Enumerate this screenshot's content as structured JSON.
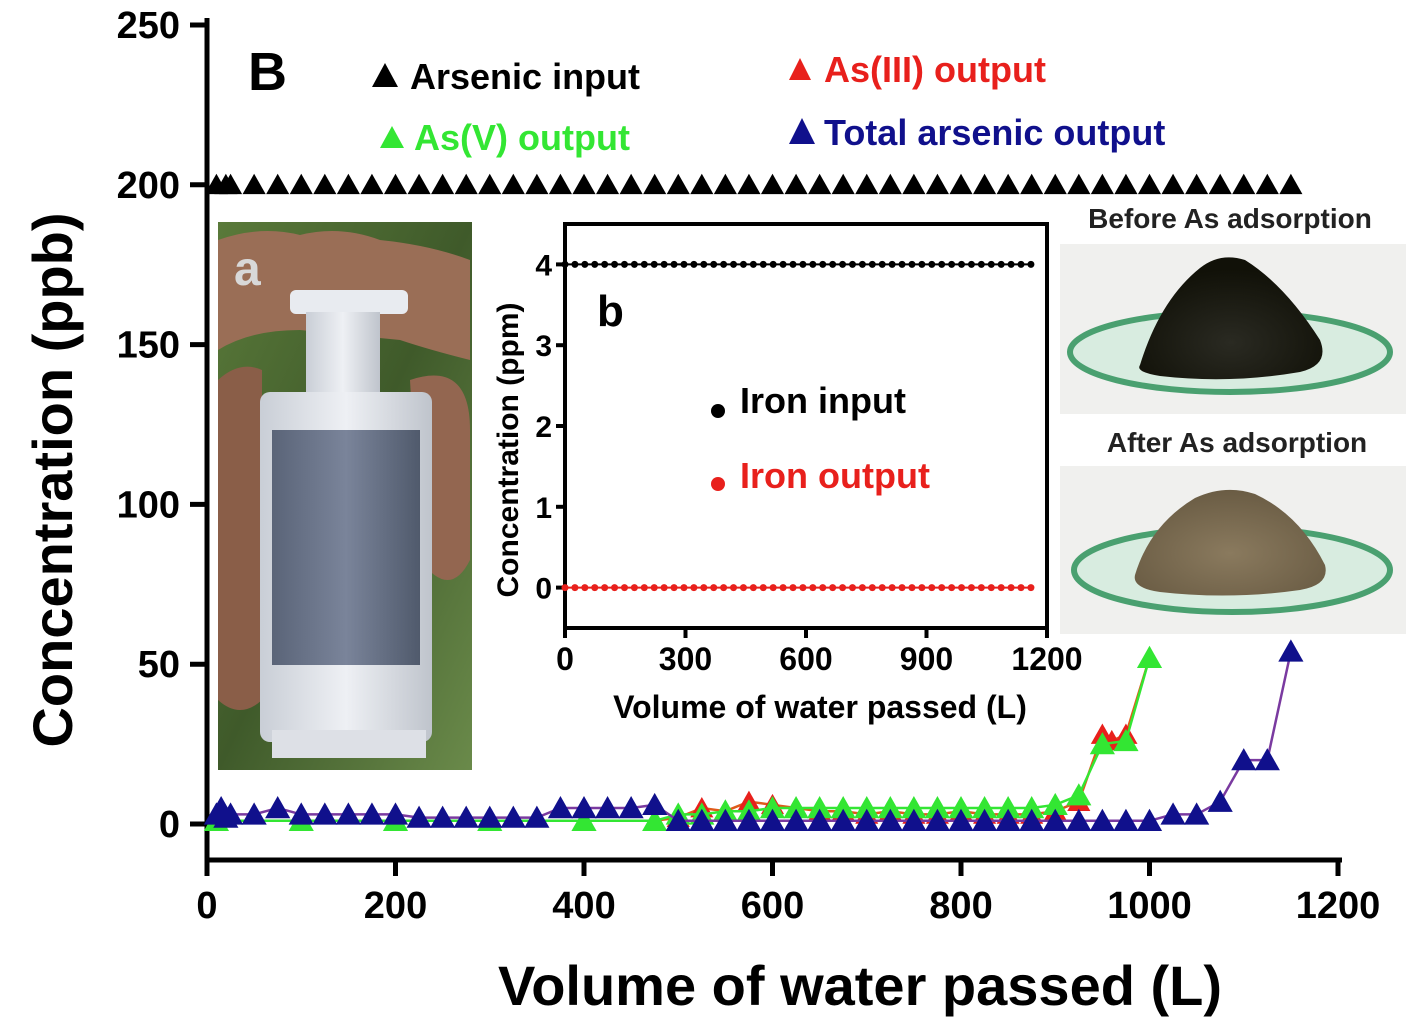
{
  "panel_label": "B",
  "inset_photo_label": "a",
  "inset_chart_label": "b",
  "photo_captions": {
    "before": "Before As adsorption",
    "after": "After As adsorption"
  },
  "colors": {
    "arsenic_input": "#000000",
    "as3_output": "#e8201c",
    "as5_output": "#33e633",
    "total_output": "#10108c",
    "as3_line": "#e05a1a",
    "total_line": "#7a3aa0",
    "iron_input": "#000000",
    "iron_output": "#e8201c"
  },
  "chart_data": [
    {
      "type": "scatter",
      "xlabel": "Volume of water passed (L)",
      "ylabel": "Concentration (ppb)",
      "xlim": [
        0,
        1200
      ],
      "ylim": [
        0,
        250
      ],
      "xticks": [
        0,
        200,
        400,
        600,
        800,
        1000,
        1200
      ],
      "yticks": [
        0,
        50,
        100,
        150,
        200,
        250
      ],
      "grid": false,
      "legend_placement": "top",
      "series": [
        {
          "name": "Arsenic input",
          "marker": "triangle",
          "x": [
            10,
            20,
            25,
            50,
            75,
            100,
            125,
            150,
            175,
            200,
            225,
            250,
            275,
            300,
            325,
            350,
            375,
            400,
            425,
            450,
            475,
            500,
            525,
            550,
            575,
            600,
            625,
            650,
            675,
            700,
            725,
            750,
            775,
            800,
            825,
            850,
            875,
            900,
            925,
            950,
            975,
            1000,
            1025,
            1050,
            1075,
            1100,
            1125,
            1150
          ],
          "y": [
            200,
            200,
            200,
            200,
            200,
            200,
            200,
            200,
            200,
            200,
            200,
            200,
            200,
            200,
            200,
            200,
            200,
            200,
            200,
            200,
            200,
            200,
            200,
            200,
            200,
            200,
            200,
            200,
            200,
            200,
            200,
            200,
            200,
            200,
            200,
            200,
            200,
            200,
            200,
            200,
            200,
            200,
            200,
            200,
            200,
            200,
            200,
            200
          ]
        },
        {
          "name": "As(III) output",
          "marker": "triangle",
          "x": [
            10,
            100,
            200,
            300,
            400,
            475,
            500,
            525,
            550,
            575,
            600,
            625,
            650,
            675,
            700,
            725,
            750,
            775,
            800,
            825,
            850,
            875,
            900,
            925,
            950,
            960,
            975,
            1000
          ],
          "y": [
            1,
            1,
            1,
            1,
            1,
            1,
            2,
            5,
            4,
            7,
            6,
            5,
            4,
            4,
            3,
            4,
            3,
            3,
            4,
            3,
            3,
            3,
            4,
            7,
            28,
            26,
            28,
            52
          ]
        },
        {
          "name": "As(V) output",
          "marker": "triangle",
          "x": [
            10,
            100,
            200,
            300,
            400,
            475,
            500,
            525,
            550,
            575,
            600,
            625,
            650,
            675,
            700,
            725,
            750,
            775,
            800,
            825,
            850,
            875,
            900,
            925,
            950,
            975,
            1000
          ],
          "y": [
            1,
            1,
            1,
            1,
            1,
            1,
            3,
            3,
            4,
            4,
            5,
            5,
            5,
            5,
            5,
            5,
            5,
            5,
            5,
            5,
            5,
            5,
            6,
            9,
            25,
            26,
            52
          ]
        },
        {
          "name": "Total arsenic output",
          "marker": "triangle",
          "x": [
            10,
            15,
            20,
            25,
            50,
            75,
            100,
            125,
            150,
            175,
            200,
            225,
            250,
            275,
            300,
            325,
            350,
            375,
            400,
            425,
            450,
            475,
            500,
            525,
            550,
            575,
            600,
            625,
            650,
            675,
            700,
            725,
            750,
            775,
            800,
            825,
            850,
            875,
            900,
            925,
            950,
            975,
            1000,
            1025,
            1050,
            1075,
            1100,
            1125,
            1150
          ],
          "y": [
            3,
            5,
            2,
            3,
            3,
            5,
            3,
            3,
            3,
            3,
            3,
            2,
            2,
            2,
            2,
            2,
            2,
            5,
            5,
            5,
            5,
            6,
            1,
            1,
            1,
            1,
            1,
            1,
            1,
            1,
            1,
            1,
            1,
            1,
            1,
            1,
            1,
            1,
            1,
            1,
            1,
            1,
            1,
            3,
            3,
            7,
            20,
            20,
            54
          ]
        }
      ]
    },
    {
      "type": "scatter",
      "label": "b",
      "xlabel": "Volume of water passed (L)",
      "ylabel": "Concentration (ppm)",
      "xlim": [
        0,
        1200
      ],
      "ylim": [
        -0.5,
        4.5
      ],
      "xticks": [
        0,
        300,
        600,
        900,
        1200
      ],
      "yticks": [
        0,
        1,
        2,
        3,
        4
      ],
      "grid": false,
      "legend_placement": "center",
      "series": [
        {
          "name": "Iron input",
          "marker": "circle",
          "constant_y": 4.0,
          "x_range": [
            0,
            1160
          ],
          "count": 48
        },
        {
          "name": "Iron output",
          "marker": "circle",
          "constant_y": 0.0,
          "x_range": [
            0,
            1160
          ],
          "count": 48
        }
      ]
    }
  ]
}
